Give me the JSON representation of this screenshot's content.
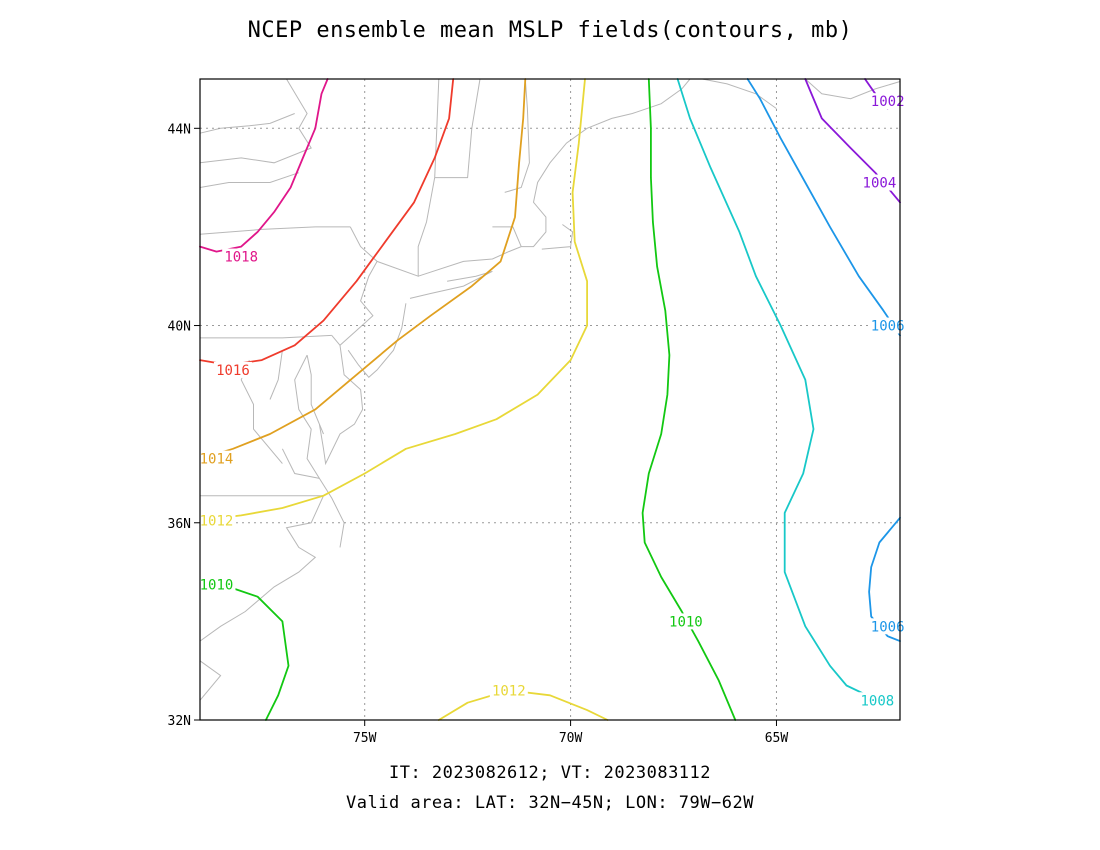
{
  "title": "NCEP ensemble mean MSLP fields(contours, mb)",
  "footer": {
    "line1": "IT: 2023082612; VT: 2023083112",
    "line2": "Valid area: LAT: 32N−45N; LON: 79W−62W"
  },
  "axes": {
    "lon_ticks": [
      {
        "value": -75,
        "label": "75W"
      },
      {
        "value": -70,
        "label": "70W"
      },
      {
        "value": -65,
        "label": "65W"
      }
    ],
    "lat_ticks": [
      {
        "value": 44,
        "label": "44N"
      },
      {
        "value": 40,
        "label": "40N"
      },
      {
        "value": 36,
        "label": "36N"
      },
      {
        "value": 32,
        "label": "32N"
      }
    ],
    "grid": "dotted"
  },
  "colors": {
    "coast": "#b8b8b8",
    "grid": "#9a9a9a",
    "frame": "#000000"
  },
  "contours": [
    {
      "level": "1018",
      "color": "#e0168a",
      "path": [
        [
          -79,
          41.6
        ],
        [
          -78.6,
          41.5
        ],
        [
          -78,
          41.6
        ],
        [
          -77.6,
          41.9
        ],
        [
          -77.2,
          42.3
        ],
        [
          -76.8,
          42.8
        ],
        [
          -76.5,
          43.4
        ],
        [
          -76.2,
          44.0
        ],
        [
          -76.05,
          44.7
        ],
        [
          -75.9,
          45.0
        ]
      ],
      "labels": [
        {
          "lon": -78.0,
          "lat": 41.4,
          "text": "1018"
        }
      ]
    },
    {
      "level": "1016",
      "color": "#ef3b2c",
      "path": [
        [
          -79,
          39.3
        ],
        [
          -78.3,
          39.2
        ],
        [
          -77.5,
          39.3
        ],
        [
          -76.7,
          39.6
        ],
        [
          -76.0,
          40.1
        ],
        [
          -75.2,
          40.9
        ],
        [
          -74.5,
          41.7
        ],
        [
          -73.8,
          42.5
        ],
        [
          -73.3,
          43.4
        ],
        [
          -72.95,
          44.2
        ],
        [
          -72.85,
          45.0
        ]
      ],
      "labels": [
        {
          "lon": -78.2,
          "lat": 39.1,
          "text": "1016"
        }
      ]
    },
    {
      "level": "1014",
      "color": "#e0a020",
      "path": [
        [
          -79,
          37.3
        ],
        [
          -78.2,
          37.5
        ],
        [
          -77.3,
          37.8
        ],
        [
          -76.2,
          38.3
        ],
        [
          -75.2,
          39.0
        ],
        [
          -74.2,
          39.7
        ],
        [
          -73.4,
          40.2
        ],
        [
          -72.4,
          40.8
        ],
        [
          -71.7,
          41.3
        ],
        [
          -71.35,
          42.2
        ],
        [
          -71.25,
          43.3
        ],
        [
          -71.15,
          44.2
        ],
        [
          -71.1,
          45.0
        ]
      ],
      "labels": [
        {
          "lon": -78.6,
          "lat": 37.3,
          "text": "1014"
        }
      ]
    },
    {
      "level": "1012",
      "color": "#e8d838",
      "path": [
        [
          -79,
          36.05
        ],
        [
          -78,
          36.15
        ],
        [
          -77,
          36.3
        ],
        [
          -76,
          36.55
        ],
        [
          -75,
          37.0
        ],
        [
          -74,
          37.5
        ],
        [
          -72.8,
          37.8
        ],
        [
          -71.8,
          38.1
        ],
        [
          -70.8,
          38.6
        ],
        [
          -70,
          39.3
        ],
        [
          -69.6,
          40.0
        ],
        [
          -69.6,
          40.9
        ],
        [
          -69.9,
          41.7
        ],
        [
          -69.95,
          42.7
        ],
        [
          -69.8,
          43.7
        ],
        [
          -69.65,
          45.0
        ]
      ],
      "labels": [
        {
          "lon": -78.6,
          "lat": 36.05,
          "text": "1012"
        }
      ]
    },
    {
      "level": "1012",
      "color": "#e8d838",
      "path": [
        [
          -73.2,
          32.0
        ],
        [
          -72.5,
          32.35
        ],
        [
          -71.5,
          32.6
        ],
        [
          -70.5,
          32.5
        ],
        [
          -69.6,
          32.2
        ],
        [
          -69.1,
          32.0
        ]
      ],
      "labels": [
        {
          "lon": -71.5,
          "lat": 32.6,
          "text": "1012"
        }
      ]
    },
    {
      "level": "1010",
      "color": "#12c812",
      "path": [
        [
          -79,
          34.8
        ],
        [
          -78.3,
          34.7
        ],
        [
          -77.6,
          34.5
        ],
        [
          -77.0,
          34.0
        ],
        [
          -76.85,
          33.1
        ],
        [
          -77.1,
          32.5
        ],
        [
          -77.4,
          32.0
        ]
      ],
      "labels": [
        {
          "lon": -78.6,
          "lat": 34.75,
          "text": "1010"
        }
      ]
    },
    {
      "level": "1010",
      "color": "#12c812",
      "path": [
        [
          -66.0,
          32.0
        ],
        [
          -66.4,
          32.8
        ],
        [
          -66.9,
          33.6
        ],
        [
          -67.3,
          34.2
        ],
        [
          -67.8,
          34.9
        ],
        [
          -68.2,
          35.6
        ],
        [
          -68.25,
          36.2
        ],
        [
          -68.1,
          37.0
        ],
        [
          -67.8,
          37.8
        ],
        [
          -67.65,
          38.6
        ],
        [
          -67.6,
          39.4
        ],
        [
          -67.7,
          40.3
        ],
        [
          -67.9,
          41.2
        ],
        [
          -68.0,
          42.1
        ],
        [
          -68.05,
          43.0
        ],
        [
          -68.05,
          44.0
        ],
        [
          -68.1,
          45.0
        ]
      ],
      "labels": [
        {
          "lon": -67.2,
          "lat": 34.0,
          "text": "1010"
        }
      ]
    },
    {
      "level": "1008",
      "color": "#18c8c8",
      "path": [
        [
          -62.3,
          32.4
        ],
        [
          -62.8,
          32.5
        ],
        [
          -63.3,
          32.7
        ],
        [
          -63.7,
          33.1
        ],
        [
          -64.3,
          33.9
        ],
        [
          -64.8,
          35.0
        ],
        [
          -64.8,
          36.2
        ],
        [
          -64.35,
          37.0
        ],
        [
          -64.1,
          37.9
        ],
        [
          -64.3,
          38.9
        ],
        [
          -64.9,
          40.0
        ],
        [
          -65.5,
          41.0
        ],
        [
          -65.9,
          41.9
        ],
        [
          -66.6,
          43.2
        ],
        [
          -67.1,
          44.2
        ],
        [
          -67.4,
          45.0
        ]
      ],
      "labels": [
        {
          "lon": -62.55,
          "lat": 32.4,
          "text": "1008"
        }
      ]
    },
    {
      "level": "1006",
      "color": "#1c96e8",
      "path": [
        [
          -62.0,
          36.1
        ],
        [
          -62.5,
          35.6
        ],
        [
          -62.7,
          35.1
        ],
        [
          -62.75,
          34.6
        ],
        [
          -62.7,
          34.1
        ],
        [
          -62.3,
          33.7
        ],
        [
          -62.0,
          33.6
        ]
      ],
      "labels": [
        {
          "lon": -62.3,
          "lat": 33.9,
          "text": "1006"
        }
      ]
    },
    {
      "level": "1006",
      "color": "#1c96e8",
      "path": [
        [
          -62.0,
          39.8
        ],
        [
          -62.4,
          40.3
        ],
        [
          -63.0,
          41.0
        ],
        [
          -63.7,
          42.0
        ],
        [
          -64.3,
          42.9
        ],
        [
          -64.9,
          43.8
        ],
        [
          -65.4,
          44.6
        ],
        [
          -65.7,
          45.0
        ]
      ],
      "labels": [
        {
          "lon": -62.3,
          "lat": 40.0,
          "text": "1006"
        }
      ]
    },
    {
      "level": "1004",
      "color": "#8a18d8",
      "path": [
        [
          -62.0,
          42.5
        ],
        [
          -62.6,
          43.1
        ],
        [
          -63.2,
          43.6
        ],
        [
          -63.9,
          44.2
        ],
        [
          -64.2,
          44.8
        ],
        [
          -64.3,
          45.0
        ]
      ],
      "labels": [
        {
          "lon": -62.5,
          "lat": 42.9,
          "text": "1004"
        }
      ]
    },
    {
      "level": "1002",
      "color": "#8a18d8",
      "path": [
        [
          -62.3,
          44.4
        ],
        [
          -62.6,
          44.7
        ],
        [
          -62.85,
          45.0
        ]
      ],
      "labels": [
        {
          "lon": -62.3,
          "lat": 44.55,
          "text": "1002"
        }
      ]
    }
  ],
  "coastlines": [
    [
      [
        -76.9,
        45.0
      ],
      [
        -76.4,
        44.3
      ],
      [
        -76.6,
        44.0
      ],
      [
        -76.3,
        43.6
      ],
      [
        -77.2,
        43.3
      ],
      [
        -78.0,
        43.4
      ],
      [
        -79.0,
        43.3
      ]
    ],
    [
      [
        -79,
        43.9
      ],
      [
        -78.5,
        44.0
      ],
      [
        -77.8,
        44.05
      ],
      [
        -77.3,
        44.1
      ],
      [
        -76.7,
        44.3
      ]
    ],
    [
      [
        -79,
        42.8
      ],
      [
        -78.3,
        42.9
      ],
      [
        -77.3,
        42.9
      ],
      [
        -76.6,
        43.1
      ]
    ],
    [
      [
        -79,
        41.85
      ],
      [
        -77.5,
        41.95
      ],
      [
        -76.2,
        42.0
      ],
      [
        -75.35,
        42.0
      ]
    ],
    [
      [
        -75.35,
        42.0
      ],
      [
        -75.1,
        41.6
      ],
      [
        -74.7,
        41.3
      ],
      [
        -74.9,
        41.0
      ],
      [
        -75.1,
        40.5
      ],
      [
        -74.8,
        40.2
      ],
      [
        -75.2,
        39.9
      ],
      [
        -75.6,
        39.6
      ],
      [
        -75.8,
        39.8
      ]
    ],
    [
      [
        -75.8,
        39.8
      ],
      [
        -77.0,
        39.75
      ],
      [
        -78.5,
        39.75
      ],
      [
        -79,
        39.75
      ]
    ],
    [
      [
        -74.7,
        41.3
      ],
      [
        -73.7,
        41.0
      ],
      [
        -73.7,
        41.6
      ],
      [
        -73.5,
        42.1
      ],
      [
        -73.3,
        43.0
      ],
      [
        -73.25,
        44.0
      ],
      [
        -73.2,
        45.0
      ]
    ],
    [
      [
        -73.3,
        43.0
      ],
      [
        -72.5,
        43.0
      ],
      [
        -72.4,
        44.0
      ],
      [
        -72.2,
        45.0
      ]
    ],
    [
      [
        -71.6,
        42.7
      ],
      [
        -71.2,
        42.8
      ],
      [
        -71.0,
        43.3
      ],
      [
        -71.05,
        44.4
      ],
      [
        -71.1,
        45.0
      ]
    ],
    [
      [
        -73.7,
        41.0
      ],
      [
        -72.6,
        41.3
      ],
      [
        -71.9,
        41.35
      ],
      [
        -71.5,
        41.5
      ],
      [
        -71.2,
        41.6
      ],
      [
        -70.9,
        41.6
      ],
      [
        -70.6,
        41.9
      ],
      [
        -70.6,
        42.2
      ],
      [
        -70.9,
        42.5
      ],
      [
        -70.8,
        42.9
      ],
      [
        -70.5,
        43.3
      ],
      [
        -70.1,
        43.7
      ],
      [
        -69.6,
        44.0
      ],
      [
        -69.0,
        44.2
      ],
      [
        -68.5,
        44.3
      ],
      [
        -67.8,
        44.5
      ],
      [
        -67.3,
        44.8
      ],
      [
        -67.1,
        45.0
      ]
    ],
    [
      [
        -71.9,
        42.0
      ],
      [
        -71.4,
        42.0
      ],
      [
        -71.2,
        41.6
      ]
    ],
    [
      [
        -73.0,
        40.9
      ],
      [
        -72.3,
        41.0
      ],
      [
        -71.9,
        41.1
      ],
      [
        -72.6,
        40.8
      ],
      [
        -73.4,
        40.65
      ],
      [
        -73.9,
        40.55
      ]
    ],
    [
      [
        -70.7,
        41.55
      ],
      [
        -70.0,
        41.6
      ],
      [
        -69.95,
        41.9
      ],
      [
        -70.2,
        42.05
      ]
    ],
    [
      [
        -74.0,
        40.45
      ],
      [
        -74.1,
        39.95
      ],
      [
        -74.3,
        39.5
      ],
      [
        -74.7,
        39.1
      ],
      [
        -74.9,
        38.95
      ],
      [
        -75.15,
        39.2
      ],
      [
        -75.4,
        39.5
      ]
    ],
    [
      [
        -75.6,
        39.6
      ],
      [
        -75.5,
        39.0
      ],
      [
        -75.1,
        38.7
      ],
      [
        -75.05,
        38.3
      ],
      [
        -75.25,
        38.0
      ],
      [
        -75.6,
        37.8
      ],
      [
        -75.95,
        37.2
      ],
      [
        -76.0,
        37.5
      ],
      [
        -76.1,
        38.0
      ],
      [
        -76.3,
        38.4
      ],
      [
        -76.3,
        39.0
      ],
      [
        -76.4,
        39.4
      ]
    ],
    [
      [
        -76.1,
        38.0
      ],
      [
        -76.0,
        37.8
      ]
    ],
    [
      [
        -76.4,
        39.4
      ],
      [
        -76.7,
        38.9
      ],
      [
        -76.6,
        38.3
      ],
      [
        -76.3,
        37.9
      ],
      [
        -76.4,
        37.3
      ],
      [
        -76.1,
        36.9
      ],
      [
        -75.8,
        36.5
      ],
      [
        -75.5,
        36.0
      ],
      [
        -75.6,
        35.5
      ]
    ],
    [
      [
        -76.1,
        36.9
      ],
      [
        -76.7,
        37.0
      ],
      [
        -77.0,
        37.5
      ]
    ],
    [
      [
        -77.0,
        39.5
      ],
      [
        -77.1,
        38.9
      ],
      [
        -77.3,
        38.5
      ]
    ],
    [
      [
        -77.8,
        39.3
      ],
      [
        -78.0,
        38.9
      ],
      [
        -77.7,
        38.4
      ],
      [
        -77.7,
        37.9
      ],
      [
        -77.0,
        37.2
      ]
    ],
    [
      [
        -79,
        36.55
      ],
      [
        -77.5,
        36.55
      ],
      [
        -76.0,
        36.55
      ]
    ],
    [
      [
        -76.0,
        36.55
      ],
      [
        -76.3,
        36.0
      ],
      [
        -76.9,
        35.9
      ],
      [
        -76.6,
        35.5
      ],
      [
        -76.2,
        35.3
      ],
      [
        -76.6,
        35.0
      ],
      [
        -77.2,
        34.7
      ],
      [
        -77.9,
        34.2
      ],
      [
        -78.5,
        33.9
      ],
      [
        -79.0,
        33.6
      ]
    ],
    [
      [
        -79.0,
        32.4
      ],
      [
        -78.5,
        32.9
      ],
      [
        -79,
        33.2
      ]
    ],
    [
      [
        -65.0,
        44.4
      ],
      [
        -65.5,
        44.7
      ],
      [
        -66.2,
        44.9
      ],
      [
        -66.8,
        45.0
      ]
    ],
    [
      [
        -64.3,
        45.0
      ],
      [
        -63.9,
        44.7
      ],
      [
        -63.2,
        44.6
      ],
      [
        -62.6,
        44.8
      ],
      [
        -62.0,
        44.95
      ]
    ]
  ]
}
